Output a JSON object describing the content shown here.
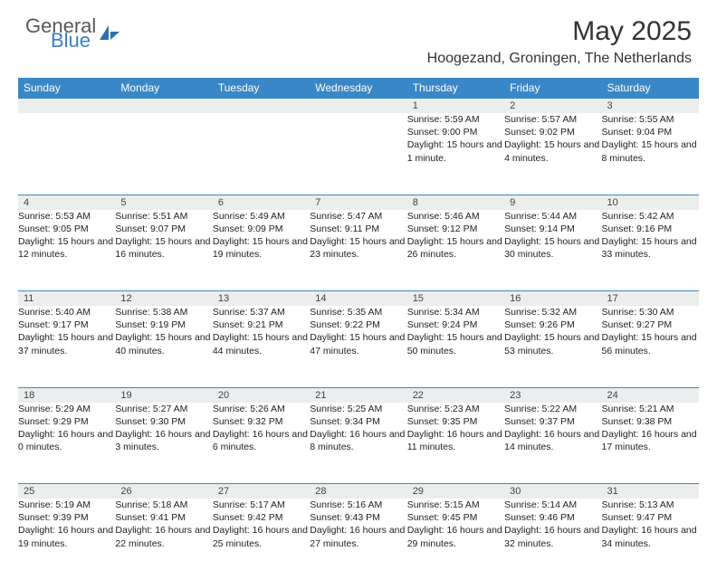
{
  "brand": {
    "name1": "General",
    "name2": "Blue"
  },
  "title": "May 2025",
  "location": "Hoogezand, Groningen, The Netherlands",
  "colors": {
    "header_bg": "#3a87c7",
    "daynum_bg": "#eceded",
    "text": "#222222",
    "brand_gray": "#555a5e",
    "brand_blue": "#3a7fc4"
  },
  "weekdays": [
    "Sunday",
    "Monday",
    "Tuesday",
    "Wednesday",
    "Thursday",
    "Friday",
    "Saturday"
  ],
  "weeks": [
    [
      {
        "n": "",
        "sr": "",
        "ss": "",
        "dl": ""
      },
      {
        "n": "",
        "sr": "",
        "ss": "",
        "dl": ""
      },
      {
        "n": "",
        "sr": "",
        "ss": "",
        "dl": ""
      },
      {
        "n": "",
        "sr": "",
        "ss": "",
        "dl": ""
      },
      {
        "n": "1",
        "sr": "Sunrise: 5:59 AM",
        "ss": "Sunset: 9:00 PM",
        "dl": "Daylight: 15 hours and 1 minute."
      },
      {
        "n": "2",
        "sr": "Sunrise: 5:57 AM",
        "ss": "Sunset: 9:02 PM",
        "dl": "Daylight: 15 hours and 4 minutes."
      },
      {
        "n": "3",
        "sr": "Sunrise: 5:55 AM",
        "ss": "Sunset: 9:04 PM",
        "dl": "Daylight: 15 hours and 8 minutes."
      }
    ],
    [
      {
        "n": "4",
        "sr": "Sunrise: 5:53 AM",
        "ss": "Sunset: 9:05 PM",
        "dl": "Daylight: 15 hours and 12 minutes."
      },
      {
        "n": "5",
        "sr": "Sunrise: 5:51 AM",
        "ss": "Sunset: 9:07 PM",
        "dl": "Daylight: 15 hours and 16 minutes."
      },
      {
        "n": "6",
        "sr": "Sunrise: 5:49 AM",
        "ss": "Sunset: 9:09 PM",
        "dl": "Daylight: 15 hours and 19 minutes."
      },
      {
        "n": "7",
        "sr": "Sunrise: 5:47 AM",
        "ss": "Sunset: 9:11 PM",
        "dl": "Daylight: 15 hours and 23 minutes."
      },
      {
        "n": "8",
        "sr": "Sunrise: 5:46 AM",
        "ss": "Sunset: 9:12 PM",
        "dl": "Daylight: 15 hours and 26 minutes."
      },
      {
        "n": "9",
        "sr": "Sunrise: 5:44 AM",
        "ss": "Sunset: 9:14 PM",
        "dl": "Daylight: 15 hours and 30 minutes."
      },
      {
        "n": "10",
        "sr": "Sunrise: 5:42 AM",
        "ss": "Sunset: 9:16 PM",
        "dl": "Daylight: 15 hours and 33 minutes."
      }
    ],
    [
      {
        "n": "11",
        "sr": "Sunrise: 5:40 AM",
        "ss": "Sunset: 9:17 PM",
        "dl": "Daylight: 15 hours and 37 minutes."
      },
      {
        "n": "12",
        "sr": "Sunrise: 5:38 AM",
        "ss": "Sunset: 9:19 PM",
        "dl": "Daylight: 15 hours and 40 minutes."
      },
      {
        "n": "13",
        "sr": "Sunrise: 5:37 AM",
        "ss": "Sunset: 9:21 PM",
        "dl": "Daylight: 15 hours and 44 minutes."
      },
      {
        "n": "14",
        "sr": "Sunrise: 5:35 AM",
        "ss": "Sunset: 9:22 PM",
        "dl": "Daylight: 15 hours and 47 minutes."
      },
      {
        "n": "15",
        "sr": "Sunrise: 5:34 AM",
        "ss": "Sunset: 9:24 PM",
        "dl": "Daylight: 15 hours and 50 minutes."
      },
      {
        "n": "16",
        "sr": "Sunrise: 5:32 AM",
        "ss": "Sunset: 9:26 PM",
        "dl": "Daylight: 15 hours and 53 minutes."
      },
      {
        "n": "17",
        "sr": "Sunrise: 5:30 AM",
        "ss": "Sunset: 9:27 PM",
        "dl": "Daylight: 15 hours and 56 minutes."
      }
    ],
    [
      {
        "n": "18",
        "sr": "Sunrise: 5:29 AM",
        "ss": "Sunset: 9:29 PM",
        "dl": "Daylight: 16 hours and 0 minutes."
      },
      {
        "n": "19",
        "sr": "Sunrise: 5:27 AM",
        "ss": "Sunset: 9:30 PM",
        "dl": "Daylight: 16 hours and 3 minutes."
      },
      {
        "n": "20",
        "sr": "Sunrise: 5:26 AM",
        "ss": "Sunset: 9:32 PM",
        "dl": "Daylight: 16 hours and 6 minutes."
      },
      {
        "n": "21",
        "sr": "Sunrise: 5:25 AM",
        "ss": "Sunset: 9:34 PM",
        "dl": "Daylight: 16 hours and 8 minutes."
      },
      {
        "n": "22",
        "sr": "Sunrise: 5:23 AM",
        "ss": "Sunset: 9:35 PM",
        "dl": "Daylight: 16 hours and 11 minutes."
      },
      {
        "n": "23",
        "sr": "Sunrise: 5:22 AM",
        "ss": "Sunset: 9:37 PM",
        "dl": "Daylight: 16 hours and 14 minutes."
      },
      {
        "n": "24",
        "sr": "Sunrise: 5:21 AM",
        "ss": "Sunset: 9:38 PM",
        "dl": "Daylight: 16 hours and 17 minutes."
      }
    ],
    [
      {
        "n": "25",
        "sr": "Sunrise: 5:19 AM",
        "ss": "Sunset: 9:39 PM",
        "dl": "Daylight: 16 hours and 19 minutes."
      },
      {
        "n": "26",
        "sr": "Sunrise: 5:18 AM",
        "ss": "Sunset: 9:41 PM",
        "dl": "Daylight: 16 hours and 22 minutes."
      },
      {
        "n": "27",
        "sr": "Sunrise: 5:17 AM",
        "ss": "Sunset: 9:42 PM",
        "dl": "Daylight: 16 hours and 25 minutes."
      },
      {
        "n": "28",
        "sr": "Sunrise: 5:16 AM",
        "ss": "Sunset: 9:43 PM",
        "dl": "Daylight: 16 hours and 27 minutes."
      },
      {
        "n": "29",
        "sr": "Sunrise: 5:15 AM",
        "ss": "Sunset: 9:45 PM",
        "dl": "Daylight: 16 hours and 29 minutes."
      },
      {
        "n": "30",
        "sr": "Sunrise: 5:14 AM",
        "ss": "Sunset: 9:46 PM",
        "dl": "Daylight: 16 hours and 32 minutes."
      },
      {
        "n": "31",
        "sr": "Sunrise: 5:13 AM",
        "ss": "Sunset: 9:47 PM",
        "dl": "Daylight: 16 hours and 34 minutes."
      }
    ]
  ]
}
